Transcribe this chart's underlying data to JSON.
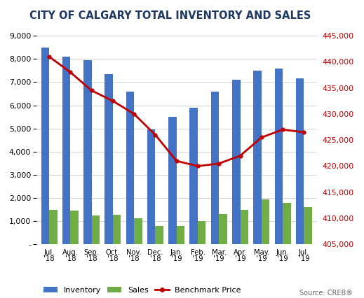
{
  "title": "CITY OF CALGARY TOTAL INVENTORY AND SALES",
  "categories": [
    "Jul.\n'18",
    "Aug.\n'18",
    "Sep.\n'18",
    "Oct.\n'18",
    "Nov.\n'18",
    "Dec.\n'18",
    "Jan.\n'19",
    "Feb.\n'19",
    "Mar.\n'19",
    "Apr.\n'19",
    "May.\n'19",
    "Jun.\n'19",
    "Jul.\n'19"
  ],
  "inventory": [
    8500,
    8100,
    7950,
    7350,
    6600,
    4950,
    5500,
    5900,
    6600,
    7100,
    7500,
    7600,
    7150
  ],
  "sales": [
    1500,
    1450,
    1250,
    1280,
    1130,
    800,
    800,
    1000,
    1300,
    1500,
    1950,
    1800,
    1620
  ],
  "benchmark_price": [
    441000,
    438000,
    434500,
    432500,
    430000,
    426000,
    421000,
    420000,
    420500,
    422000,
    425500,
    427000,
    426500
  ],
  "bar_color_inventory": "#4472C4",
  "bar_color_sales": "#70AD47",
  "line_color": "#C00000",
  "title_color": "#1F3864",
  "left_ylim": [
    0,
    9000
  ],
  "right_ylim": [
    405000,
    445000
  ],
  "left_yticks": [
    0,
    1000,
    2000,
    3000,
    4000,
    5000,
    6000,
    7000,
    8000,
    9000
  ],
  "right_yticks": [
    405000,
    410000,
    415000,
    420000,
    425000,
    430000,
    435000,
    440000,
    445000
  ],
  "source_text": "Source: CREB®"
}
